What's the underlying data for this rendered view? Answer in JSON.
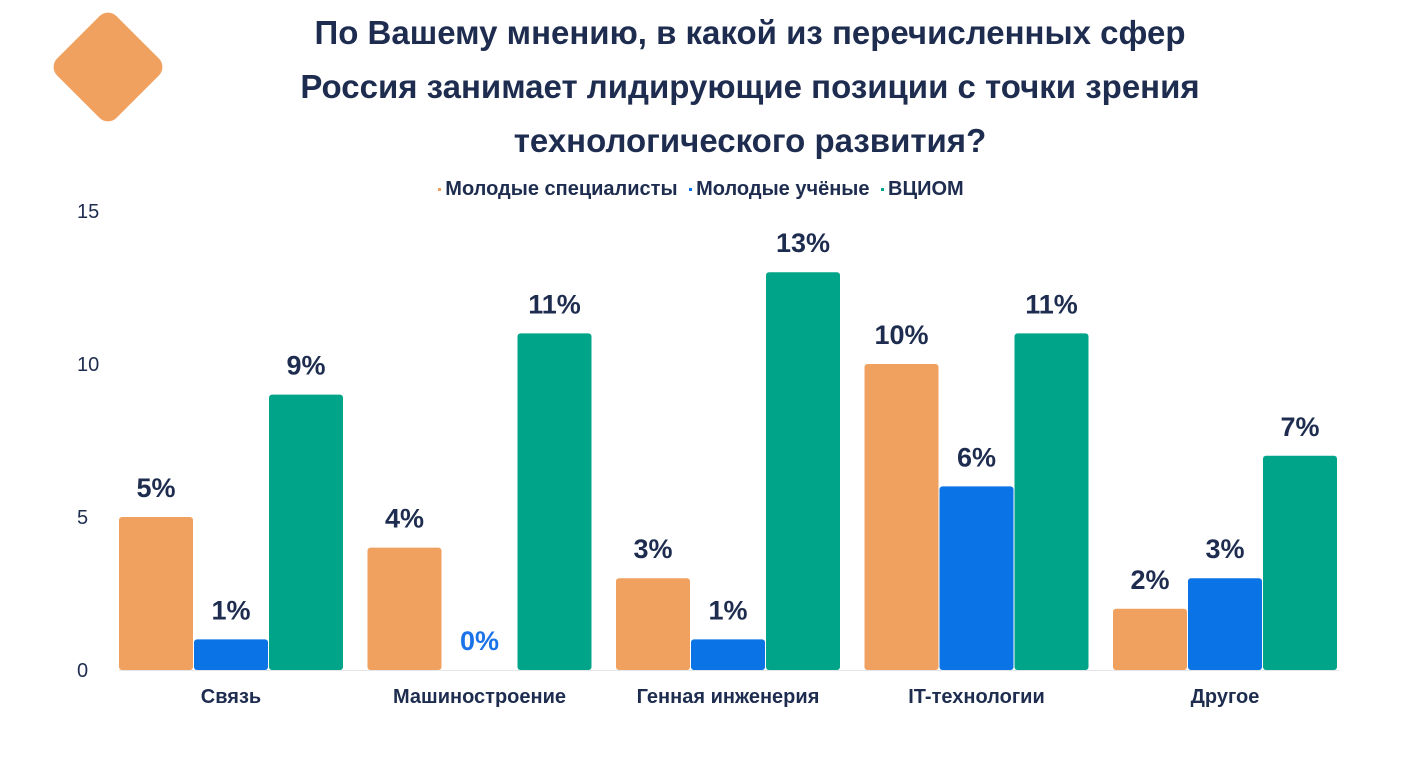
{
  "title_lines": [
    "По Вашему мнению, в какой из перечисленных сфер",
    "Россия занимает лидирующие позиции с точки зрения",
    "технологического развития?"
  ],
  "colors": {
    "text": "#1e2d4f",
    "zero_label": "#1a73e8",
    "accent_diamond": "#f0a160"
  },
  "chart_data": {
    "type": "bar",
    "categories": [
      "Связь",
      "Машиностроение",
      "Генная инженерия",
      "IT-технологии",
      "Другое"
    ],
    "series": [
      {
        "name": "Молодые специалисты",
        "color": "#f0a160",
        "values": [
          5,
          4,
          3,
          10,
          2
        ],
        "labels": [
          "5%",
          "4%",
          "3%",
          "10%",
          "2%"
        ]
      },
      {
        "name": "Молодые учёные",
        "color": "#0a73e6",
        "values": [
          1,
          0,
          1,
          6,
          3
        ],
        "labels": [
          "1%",
          "0%",
          "1%",
          "6%",
          "3%"
        ]
      },
      {
        "name": "ВЦИОМ",
        "color": "#00a589",
        "values": [
          9,
          11,
          13,
          11,
          7
        ],
        "labels": [
          "9%",
          "11%",
          "13%",
          "11%",
          "7%"
        ]
      }
    ],
    "ylim": [
      0,
      15
    ],
    "yticks": [
      "0",
      "5",
      "10",
      "15"
    ],
    "legend_position": "top-center",
    "grid": false
  }
}
